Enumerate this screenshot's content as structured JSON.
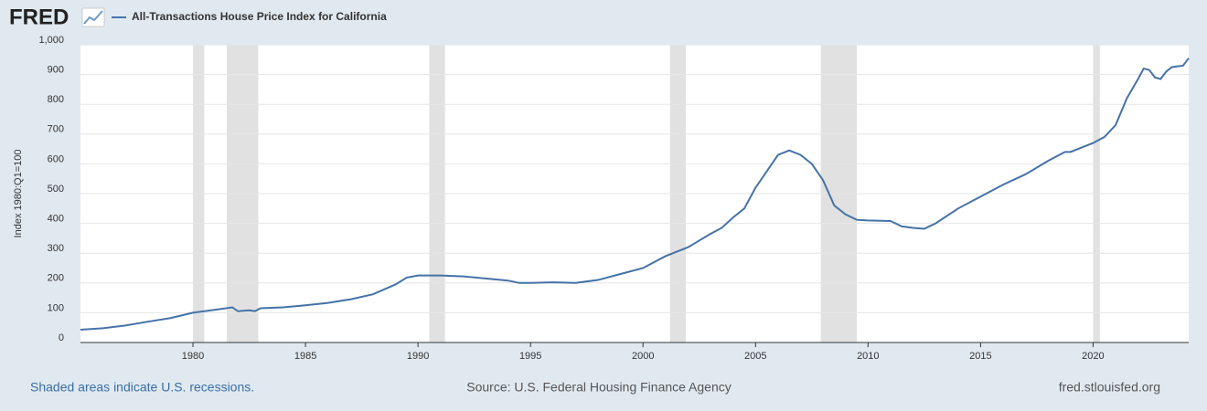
{
  "brand": "FRED",
  "chart_data": {
    "type": "line",
    "title": "All-Transactions House Price Index for California",
    "y_label": "Index 1980:Q1=100",
    "recession_note": "Shaded areas indicate U.S. recessions.",
    "source": "Source: U.S. Federal Housing Finance Agency",
    "site": "fred.stlouisfed.org",
    "recessions": [
      [
        1980.0,
        1980.5
      ],
      [
        1981.5,
        1982.9
      ],
      [
        1990.5,
        1991.2
      ],
      [
        2001.2,
        2001.9
      ],
      [
        2007.9,
        2009.5
      ],
      [
        2020.0,
        2020.3
      ]
    ],
    "xlim": [
      1975,
      2024.25
    ],
    "xticks": [
      1980,
      1985,
      1990,
      1995,
      2000,
      2005,
      2010,
      2015,
      2020
    ],
    "ylim": [
      0,
      1000
    ],
    "yticks": [
      0,
      100,
      200,
      300,
      400,
      500,
      600,
      700,
      800,
      900,
      {
        "value": 1000,
        "label": "1,000"
      }
    ],
    "grid": true,
    "x": [
      1975,
      1976,
      1977,
      1978,
      1979,
      1980,
      1981,
      1981.75,
      1982,
      1982.5,
      1982.75,
      1983,
      1984,
      1985,
      1986,
      1987,
      1988,
      1989,
      1989.5,
      1990,
      1991,
      1992,
      1993,
      1994,
      1994.5,
      1995,
      1996,
      1997,
      1998,
      1999,
      2000,
      2001,
      2002,
      2003,
      2003.5,
      2004,
      2004.5,
      2005,
      2005.5,
      2006,
      2006.5,
      2007,
      2007.5,
      2008,
      2008.5,
      2009,
      2009.5,
      2010,
      2011,
      2011.5,
      2012,
      2012.5,
      2013,
      2014,
      2015,
      2016,
      2017,
      2018,
      2018.75,
      2019,
      2020,
      2020.5,
      2021,
      2021.5,
      2022,
      2022.25,
      2022.5,
      2022.75,
      2023,
      2023.25,
      2023.5,
      2024,
      2024.25
    ],
    "series": [
      {
        "name": "All-Transactions House Price Index for California",
        "color": "#4572a7",
        "values": [
          43,
          48,
          57,
          70,
          82,
          100,
          110,
          118,
          105,
          108,
          105,
          115,
          118,
          125,
          133,
          145,
          162,
          195,
          218,
          225,
          225,
          222,
          215,
          208,
          200,
          200,
          202,
          200,
          210,
          230,
          250,
          290,
          320,
          365,
          385,
          420,
          450,
          520,
          575,
          630,
          645,
          630,
          600,
          545,
          460,
          430,
          412,
          410,
          408,
          390,
          385,
          382,
          400,
          450,
          490,
          530,
          565,
          610,
          640,
          640,
          670,
          690,
          730,
          820,
          885,
          920,
          915,
          890,
          885,
          910,
          925,
          930,
          955
        ]
      }
    ]
  }
}
